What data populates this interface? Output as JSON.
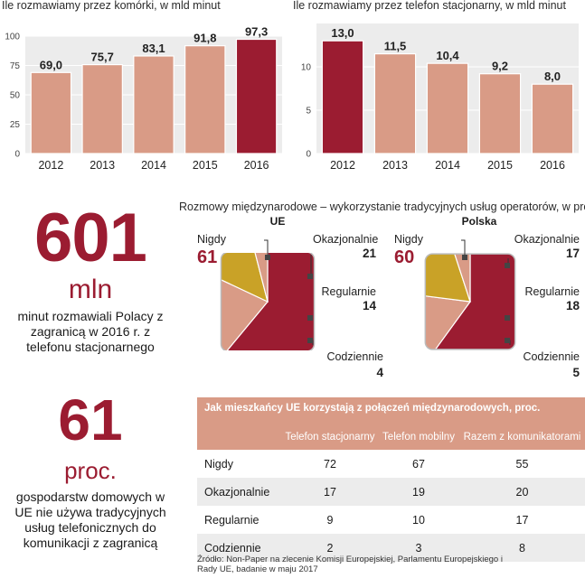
{
  "chart_data": [
    {
      "type": "bar",
      "title": "Ile rozmawiamy przez komórki, w mld minut",
      "categories": [
        "2012",
        "2013",
        "2014",
        "2015",
        "2016"
      ],
      "values": [
        69.0,
        75.7,
        83.1,
        91.8,
        97.3
      ],
      "value_labels": [
        "69,0",
        "75,7",
        "83,1",
        "91,8",
        "97,3"
      ],
      "highlight_index": 4,
      "ylim": [
        0,
        100
      ],
      "yticks": [
        0,
        25,
        50,
        75,
        100
      ],
      "ytick_labels": [
        "0",
        "25",
        "50",
        "75",
        "100"
      ],
      "grid": true
    },
    {
      "type": "bar",
      "title": "Ile rozmawiamy przez telefon stacjonarny, w mld minut",
      "categories": [
        "2012",
        "2013",
        "2014",
        "2015",
        "2016"
      ],
      "values": [
        13.0,
        11.5,
        10.4,
        9.2,
        8.0
      ],
      "value_labels": [
        "13,0",
        "11,5",
        "10,4",
        "9,2",
        "8,0"
      ],
      "highlight_index": 0,
      "ylim": [
        0,
        15
      ],
      "yticks": [
        0,
        5,
        10
      ],
      "ytick_labels": [
        "0",
        "5",
        "10"
      ],
      "grid": true
    },
    {
      "type": "pie",
      "title": "UE",
      "categories": [
        "Nigdy",
        "Okazjonalnie",
        "Regularnie",
        "Codziennie"
      ],
      "values": [
        61,
        21,
        14,
        4
      ]
    },
    {
      "type": "pie",
      "title": "Polska",
      "categories": [
        "Nigdy",
        "Okazjonalnie",
        "Regularnie",
        "Codziennie"
      ],
      "values": [
        60,
        17,
        18,
        5
      ]
    },
    {
      "type": "table",
      "title": "Jak mieszkańcy UE korzystają z połączeń międzynarodowych, proc.",
      "columns": [
        "Telefon stacjonarny",
        "Telefon mobilny",
        "Razem z komunikatorami"
      ],
      "rows": [
        {
          "name": "Nigdy",
          "values": [
            "72",
            "67",
            "55"
          ]
        },
        {
          "name": "Okazjonalnie",
          "values": [
            "17",
            "19",
            "20"
          ]
        },
        {
          "name": "Regularnie",
          "values": [
            "9",
            "10",
            "17"
          ]
        },
        {
          "name": "Codziennie",
          "values": [
            "2",
            "3",
            "8"
          ]
        }
      ]
    }
  ],
  "pies_title": "Rozmowy międzynarodowe – wykorzystanie tradycyjnych usług operatorów, w proc.",
  "pie_ue": {
    "head": "UE",
    "nigdy_label": "Nigdy",
    "nigdy_value": "61",
    "okaz_label": "Okazjonalnie",
    "okaz_value": "21",
    "reg_label": "Regularnie",
    "reg_value": "14",
    "codz_label": "Codziennie",
    "codz_value": "4"
  },
  "pie_pl": {
    "head": "Polska",
    "nigdy_label": "Nigdy",
    "nigdy_value": "60",
    "okaz_label": "Okazjonalnie",
    "okaz_value": "17",
    "reg_label": "Regularnie",
    "reg_value": "18",
    "codz_label": "Codziennie",
    "codz_value": "5"
  },
  "stat1": {
    "number": "601",
    "unit": "mln",
    "caption": "minut rozmawiali Polacy z zagranicą w 2016 r. z telefonu stacjonarnego"
  },
  "stat2": {
    "number": "61",
    "unit": "proc.",
    "caption": "gospodarstw domowych w UE nie używa tradycyjnych usług telefonicznych do komunikacji z zagranicą"
  },
  "table": {
    "title": "Jak mieszkańcy UE korzystają z połączeń międzynarodowych, proc.",
    "col1": "Telefon stacjonarny",
    "col2": "Telefon mobilny",
    "col3": "Razem z komunikatorami",
    "r1": {
      "name": "Nigdy",
      "a": "72",
      "b": "67",
      "c": "55"
    },
    "r2": {
      "name": "Okazjonalnie",
      "a": "17",
      "b": "19",
      "c": "20"
    },
    "r3": {
      "name": "Regularnie",
      "a": "9",
      "b": "10",
      "c": "17"
    },
    "r4": {
      "name": "Codziennie",
      "a": "2",
      "b": "3",
      "c": "8"
    }
  },
  "source": "Źródło: Non-Paper na zlecenie Komisji Europejskiej, Parlamentu Europejskiego i Rady UE, badanie w maju 2017",
  "colors": {
    "accent": "#9b1c31",
    "bar": "#d99b86",
    "gold": "#c9a227",
    "grid": "#e6e6e6",
    "panel": "#ececec"
  }
}
